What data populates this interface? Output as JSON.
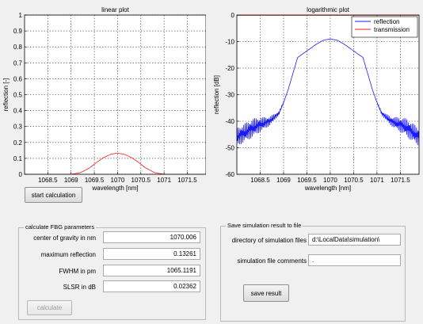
{
  "colors": {
    "reflection": "#1a1aff",
    "transmission": "#ff1a1a"
  },
  "chart_data": [
    {
      "type": "line",
      "title": "linear plot",
      "xlabel": "wavelength [nm]",
      "ylabel": "reflection [-]",
      "xlim": [
        1068.0,
        1071.9
      ],
      "ylim": [
        0,
        1
      ],
      "grid": true,
      "x_ticks": [
        1068.5,
        1069,
        1069.5,
        1070,
        1070.5,
        1071,
        1071.5
      ],
      "x_tick_labels": [
        "1068.5",
        "1069",
        "1069.5",
        "1070",
        "1070.5",
        "1071",
        "1071.5"
      ],
      "y_ticks": [
        0,
        0.1,
        0.2,
        0.3,
        0.4,
        0.5,
        0.6,
        0.7,
        0.8,
        0.9,
        1
      ],
      "y_tick_labels": [
        "0",
        "0.1",
        "0.2",
        "0.3",
        "0.4",
        "0.5",
        "0.6",
        "0.7",
        "0.8",
        "0.9",
        "1"
      ],
      "series": [
        {
          "color": "#ff1a1a",
          "x": [
            1068.0,
            1069.0,
            1069.2,
            1069.4,
            1069.55,
            1069.7,
            1069.85,
            1070.0,
            1070.15,
            1070.3,
            1070.45,
            1070.6,
            1070.8,
            1071.0,
            1071.9
          ],
          "y": [
            0,
            0,
            0.01,
            0.04,
            0.075,
            0.105,
            0.125,
            0.133,
            0.125,
            0.105,
            0.075,
            0.04,
            0.01,
            0,
            0
          ]
        }
      ]
    },
    {
      "type": "line",
      "title": "logarithmic plot",
      "xlabel": "wavelength [nm]",
      "ylabel": "reflection [dB]",
      "xlim": [
        1068.0,
        1071.9
      ],
      "ylim": [
        -60,
        0
      ],
      "grid": true,
      "legend": "top-right",
      "x_ticks": [
        1068.5,
        1069,
        1069.5,
        1070,
        1070.5,
        1071,
        1071.5
      ],
      "x_tick_labels": [
        "1068.5",
        "1069",
        "1069.5",
        "1070",
        "1070.5",
        "1071",
        "1071.5"
      ],
      "y_ticks": [
        0,
        -10,
        -20,
        -30,
        -40,
        -50,
        -60
      ],
      "y_tick_labels": [
        "0",
        "-10",
        "-20",
        "-30",
        "-40",
        "-50",
        "-60"
      ],
      "series": [
        {
          "name": "reflection",
          "color": "#1a1aff",
          "noisy_edges": true,
          "x": [
            1068.0,
            1068.4,
            1068.7,
            1068.9,
            1069.0,
            1069.1,
            1069.2,
            1069.3,
            1069.5,
            1069.7,
            1069.85,
            1070.0,
            1070.15,
            1070.3,
            1070.5,
            1070.7,
            1070.8,
            1070.9,
            1071.0,
            1071.1,
            1071.3,
            1071.6,
            1071.9
          ],
          "y": [
            -46,
            -42,
            -40,
            -37,
            -33,
            -28,
            -22,
            -16,
            -13.5,
            -11,
            -9.5,
            -9,
            -9.5,
            -11,
            -13.5,
            -16,
            -22,
            -28,
            -33,
            -37,
            -40,
            -42,
            -46
          ]
        },
        {
          "name": "transmission",
          "color": "#ff1a1a",
          "x": [
            1068.0,
            1071.9
          ],
          "y": [
            -0.1,
            -0.1
          ]
        }
      ]
    }
  ],
  "buttons": {
    "start_calculation": "start calculation",
    "calculate": "calculate",
    "save_result": "save result"
  },
  "fbg_panel": {
    "title": "calculate FBG parameters",
    "rows": [
      {
        "label": "center of gravity in nm",
        "value": "1070.006"
      },
      {
        "label": "maximum reflection",
        "value": "0.13261"
      },
      {
        "label": "FWHM in pm",
        "value": "1065.1191"
      },
      {
        "label": "SLSR in dB",
        "value": "0.02362"
      }
    ]
  },
  "save_panel": {
    "title": "Save simulation result to file",
    "directory_label": "directory of simulation files",
    "directory_value": "d:\\LocalData\\simulation\\",
    "comments_label": "simulation file comments",
    "comments_value": "."
  }
}
